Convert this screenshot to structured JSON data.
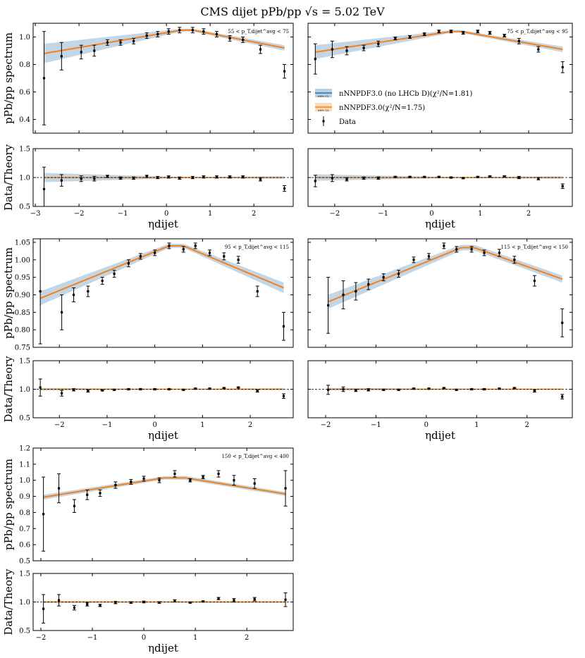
{
  "figure": {
    "title": "CMS dijet pPb/pp √s = 5.02 TeV",
    "ylabel_top": "pPb/pp spectrum",
    "ylabel_bottom": "Data/Theory",
    "xlabel": "ηdijet"
  },
  "legend": {
    "entries": [
      {
        "label": "nNNPDF3.0 (no LHCb D)(χ²/N=1.81)",
        "color": "#1f77b4",
        "band_color": "#b9cfe2"
      },
      {
        "label": "nNNPDF3.0(χ²/N=1.75)",
        "color": "#ff7f0e",
        "band_color": "#fcd9b8"
      },
      {
        "label": "Data",
        "color": "#000000"
      }
    ],
    "cl_tag": "68% CL"
  },
  "chart_data": [
    {
      "type": "line",
      "bin_label": "55 < p_T,dijet^avg < 75",
      "x": [
        -2.8,
        -2.4,
        -1.95,
        -1.65,
        -1.35,
        -1.05,
        -0.75,
        -0.45,
        -0.2,
        0.05,
        0.3,
        0.6,
        0.85,
        1.15,
        1.45,
        1.75,
        2.15,
        2.7
      ],
      "data": [
        0.7,
        0.86,
        0.89,
        0.9,
        0.96,
        0.96,
        0.97,
        1.01,
        1.02,
        1.04,
        1.05,
        1.05,
        1.04,
        1.02,
        0.99,
        0.98,
        0.91,
        0.75
      ],
      "err": [
        0.34,
        0.1,
        0.05,
        0.04,
        0.02,
        0.02,
        0.02,
        0.02,
        0.02,
        0.02,
        0.02,
        0.02,
        0.02,
        0.02,
        0.02,
        0.02,
        0.03,
        0.05
      ],
      "theory_x": [
        -2.8,
        0.35,
        0.6,
        2.7
      ],
      "theory": [
        0.88,
        1.05,
        1.05,
        0.92
      ],
      "band": [
        0.07,
        0.01,
        0.01,
        0.02
      ],
      "ratio": [
        0.8,
        0.95,
        0.98,
        0.98,
        1.02,
        0.99,
        0.99,
        1.02,
        1.0,
        1.01,
        0.99,
        1.0,
        1.01,
        1.01,
        1.01,
        1.01,
        0.97,
        0.81
      ],
      "ratio_err": [
        0.38,
        0.1,
        0.05,
        0.04,
        0.02,
        0.02,
        0.02,
        0.02,
        0.02,
        0.02,
        0.02,
        0.02,
        0.02,
        0.02,
        0.02,
        0.02,
        0.03,
        0.05
      ],
      "xlim": [
        -3.05,
        2.9
      ],
      "ylim": [
        0.3,
        1.1
      ],
      "yticks": [
        0.4,
        0.6,
        0.8,
        1.0
      ],
      "ytick_labels": [
        "0.4",
        "0.6",
        "0.8",
        "1.0"
      ],
      "xticks": [
        -3,
        -2,
        -1,
        0,
        1,
        2
      ],
      "xtick_labels": [
        "−3",
        "−2",
        "−1",
        "0",
        "1",
        "2"
      ],
      "ratio_ylim": [
        0.5,
        1.5
      ],
      "ratio_yticks": [
        0.5,
        1.0,
        1.5
      ],
      "ratio_ytick_labels": [
        "0.5",
        "1.0",
        "1.5"
      ]
    },
    {
      "type": "line",
      "bin_label": "75 < p_T,dijet^avg < 95",
      "x": [
        -2.4,
        -2.05,
        -1.75,
        -1.4,
        -1.1,
        -0.75,
        -0.45,
        -0.15,
        0.15,
        0.4,
        0.65,
        0.95,
        1.2,
        1.5,
        1.8,
        2.2,
        2.7
      ],
      "data": [
        0.84,
        0.91,
        0.9,
        0.92,
        0.95,
        0.99,
        1.0,
        1.02,
        1.04,
        1.04,
        1.03,
        1.04,
        1.03,
        1.01,
        0.97,
        0.91,
        0.78
      ],
      "err": [
        0.11,
        0.06,
        0.03,
        0.02,
        0.02,
        0.01,
        0.01,
        0.01,
        0.01,
        0.01,
        0.01,
        0.01,
        0.01,
        0.01,
        0.02,
        0.02,
        0.04
      ],
      "theory_x": [
        -2.4,
        0.4,
        0.6,
        2.7
      ],
      "theory": [
        0.89,
        1.04,
        1.04,
        0.91
      ],
      "band": [
        0.05,
        0.01,
        0.01,
        0.02
      ],
      "ratio": [
        0.94,
        0.99,
        0.97,
        0.99,
        0.99,
        1.01,
        1.01,
        1.01,
        1.01,
        1.0,
        0.99,
        1.01,
        1.02,
        1.02,
        1.0,
        0.98,
        0.85
      ],
      "ratio_err": [
        0.1,
        0.06,
        0.03,
        0.02,
        0.02,
        0.01,
        0.01,
        0.01,
        0.01,
        0.01,
        0.01,
        0.01,
        0.01,
        0.01,
        0.02,
        0.02,
        0.04
      ],
      "xlim": [
        -2.55,
        2.9
      ],
      "ylim": [
        0.3,
        1.1
      ],
      "yticks": [
        0.4,
        0.6,
        0.8,
        1.0
      ],
      "ytick_labels": [
        "",
        "",
        "",
        ""
      ],
      "xticks": [
        -2,
        -1,
        0,
        1,
        2
      ],
      "xtick_labels": [
        "−2",
        "−1",
        "0",
        "1",
        "2"
      ],
      "ratio_ylim": [
        0.5,
        1.5
      ],
      "ratio_yticks": [
        0.5,
        1.0,
        1.5
      ],
      "ratio_ytick_labels": [
        "",
        "",
        ""
      ]
    },
    {
      "type": "line",
      "bin_label": "95 < p_T,dijet^avg < 115",
      "x": [
        -2.4,
        -1.95,
        -1.7,
        -1.4,
        -1.1,
        -0.85,
        -0.55,
        -0.3,
        0.0,
        0.3,
        0.6,
        0.85,
        1.15,
        1.45,
        1.75,
        2.15,
        2.7
      ],
      "data": [
        0.91,
        0.85,
        0.9,
        0.91,
        0.94,
        0.96,
        0.99,
        1.01,
        1.02,
        1.04,
        1.03,
        1.04,
        1.02,
        1.01,
        1.0,
        0.91,
        0.81
      ],
      "err": [
        0.15,
        0.05,
        0.02,
        0.015,
        0.01,
        0.01,
        0.01,
        0.008,
        0.008,
        0.008,
        0.008,
        0.008,
        0.008,
        0.01,
        0.01,
        0.015,
        0.04
      ],
      "theory_x": [
        -2.4,
        0.3,
        0.6,
        2.7
      ],
      "theory": [
        0.89,
        1.04,
        1.04,
        0.92
      ],
      "band": [
        0.02,
        0.006,
        0.006,
        0.015
      ],
      "ratio": [
        1.03,
        0.93,
        0.99,
        0.97,
        0.98,
        0.99,
        1.0,
        1.0,
        1.0,
        1.0,
        0.99,
        1.01,
        1.01,
        1.02,
        1.03,
        0.97,
        0.88
      ],
      "ratio_err": [
        0.15,
        0.05,
        0.02,
        0.02,
        0.01,
        0.01,
        0.01,
        0.01,
        0.01,
        0.01,
        0.01,
        0.01,
        0.01,
        0.01,
        0.01,
        0.02,
        0.04
      ],
      "xlim": [
        -2.55,
        2.9
      ],
      "ylim": [
        0.75,
        1.06
      ],
      "yticks": [
        0.75,
        0.8,
        0.85,
        0.9,
        0.95,
        1.0,
        1.05
      ],
      "ytick_labels": [
        "0.75",
        "0.80",
        "0.85",
        "0.90",
        "0.95",
        "1.00",
        "1.05"
      ],
      "xticks": [
        -2,
        -1,
        0,
        1,
        2
      ],
      "xtick_labels": [
        "−2",
        "−1",
        "0",
        "1",
        "2"
      ],
      "ratio_ylim": [
        0.5,
        1.5
      ],
      "ratio_yticks": [
        0.5,
        1.0,
        1.5
      ],
      "ratio_ytick_labels": [
        "0.5",
        "1.0",
        "1.5"
      ]
    },
    {
      "type": "line",
      "bin_label": "115 < p_T,dijet^avg < 150",
      "x": [
        -1.95,
        -1.65,
        -1.4,
        -1.15,
        -0.85,
        -0.55,
        -0.25,
        0.05,
        0.35,
        0.6,
        0.9,
        1.15,
        1.45,
        1.75,
        2.15,
        2.7
      ],
      "data": [
        0.87,
        0.9,
        0.91,
        0.93,
        0.95,
        0.96,
        1.0,
        1.01,
        1.04,
        1.03,
        1.03,
        1.02,
        1.02,
        1.0,
        0.94,
        0.82
      ],
      "err": [
        0.08,
        0.04,
        0.025,
        0.015,
        0.01,
        0.01,
        0.008,
        0.008,
        0.008,
        0.008,
        0.008,
        0.008,
        0.01,
        0.01,
        0.015,
        0.04
      ],
      "theory_x": [
        -1.95,
        0.7,
        0.95,
        2.7
      ],
      "theory": [
        0.88,
        1.035,
        1.035,
        0.945
      ],
      "band": [
        0.02,
        0.008,
        0.008,
        0.01
      ],
      "ratio": [
        0.99,
        1.0,
        0.98,
        0.99,
        0.99,
        0.99,
        1.01,
        1.01,
        1.02,
        0.99,
        1.0,
        1.0,
        1.01,
        1.02,
        0.97,
        0.87
      ],
      "ratio_err": [
        0.08,
        0.04,
        0.02,
        0.02,
        0.01,
        0.01,
        0.01,
        0.01,
        0.01,
        0.01,
        0.01,
        0.01,
        0.01,
        0.01,
        0.02,
        0.04
      ],
      "xlim": [
        -2.35,
        2.9
      ],
      "ylim": [
        0.75,
        1.06
      ],
      "yticks": [
        0.75,
        0.8,
        0.85,
        0.9,
        0.95,
        1.0,
        1.05
      ],
      "ytick_labels": [
        "",
        "",
        "",
        "",
        "",
        "",
        ""
      ],
      "xticks": [
        -2,
        -1,
        0,
        1,
        2
      ],
      "xtick_labels": [
        "−2",
        "−1",
        "0",
        "1",
        "2"
      ],
      "ratio_ylim": [
        0.5,
        1.5
      ],
      "ratio_yticks": [
        0.5,
        1.0,
        1.5
      ],
      "ratio_ytick_labels": [
        "",
        "",
        ""
      ]
    },
    {
      "type": "line",
      "bin_label": "150 < p_T,dijet^avg < 400",
      "x": [
        -1.95,
        -1.65,
        -1.35,
        -1.1,
        -0.85,
        -0.55,
        -0.25,
        0.0,
        0.3,
        0.6,
        0.9,
        1.15,
        1.45,
        1.75,
        2.15,
        2.75
      ],
      "data": [
        0.79,
        0.95,
        0.84,
        0.91,
        0.92,
        0.97,
        0.99,
        1.01,
        1.0,
        1.04,
        1.0,
        1.02,
        1.04,
        1.0,
        0.98,
        0.95
      ],
      "err": [
        0.23,
        0.09,
        0.04,
        0.03,
        0.02,
        0.02,
        0.015,
        0.015,
        0.015,
        0.02,
        0.01,
        0.01,
        0.02,
        0.03,
        0.03,
        0.11
      ],
      "theory_x": [
        -1.95,
        0.4,
        0.8,
        2.75
      ],
      "theory": [
        0.895,
        1.015,
        1.015,
        0.915
      ],
      "band": [
        0.015,
        0.01,
        0.012,
        0.012
      ],
      "ratio": [
        0.88,
        1.03,
        0.9,
        0.96,
        0.94,
        0.99,
        0.99,
        1.0,
        0.99,
        1.02,
        0.99,
        1.01,
        1.06,
        1.03,
        1.05,
        1.04
      ],
      "ratio_err": [
        0.25,
        0.1,
        0.04,
        0.03,
        0.02,
        0.02,
        0.015,
        0.015,
        0.015,
        0.02,
        0.01,
        0.01,
        0.02,
        0.03,
        0.03,
        0.12
      ],
      "xlim": [
        -2.15,
        2.9
      ],
      "ylim": [
        0.5,
        1.2
      ],
      "yticks": [
        0.5,
        0.6,
        0.7,
        0.8,
        0.9,
        1.0,
        1.1,
        1.2
      ],
      "ytick_labels": [
        "0.5",
        "0.6",
        "0.7",
        "0.8",
        "0.9",
        "1.0",
        "1.1",
        "1.2"
      ],
      "xticks": [
        -2,
        -1,
        0,
        1,
        2
      ],
      "xtick_labels": [
        "−2",
        "−1",
        "0",
        "1",
        "2"
      ],
      "ratio_ylim": [
        0.5,
        1.5
      ],
      "ratio_yticks": [
        0.5,
        1.0,
        1.5
      ],
      "ratio_ytick_labels": [
        "0.5",
        "1.0",
        "1.5"
      ]
    }
  ]
}
